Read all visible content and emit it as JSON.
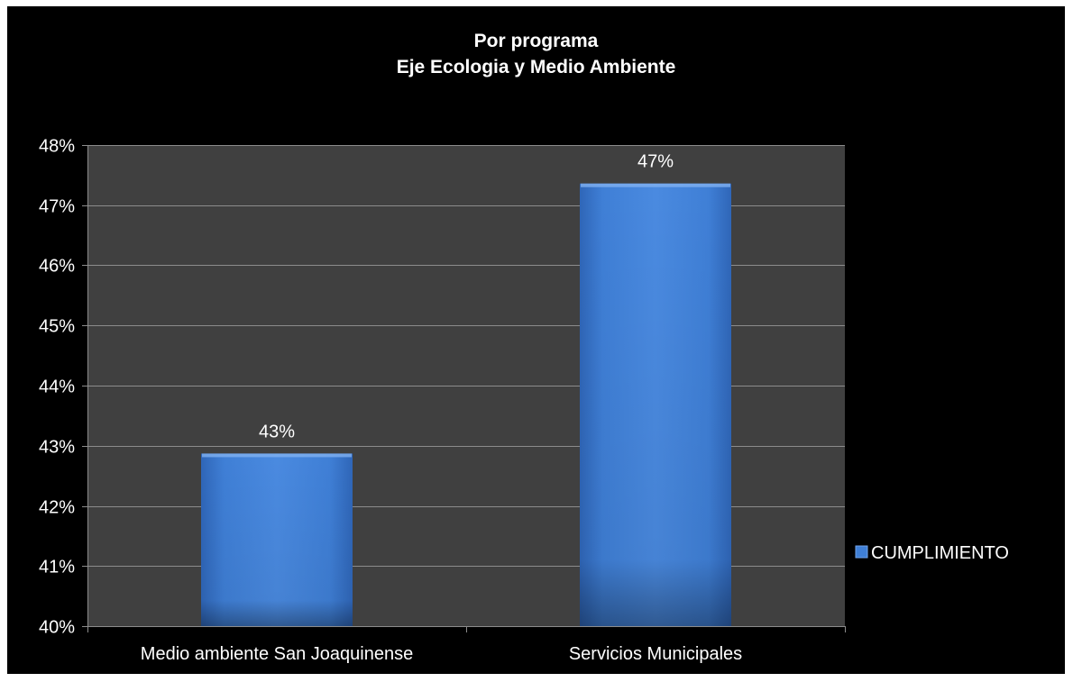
{
  "chart_data": {
    "type": "bar",
    "title": [
      "Por programa",
      "Eje Ecologia y Medio Ambiente"
    ],
    "categories": [
      "Medio ambiente San Joaquinense",
      "Servicios Municipales"
    ],
    "series": [
      {
        "name": "CUMPLIMIENTO",
        "values": [
          0.4287,
          0.4736
        ],
        "data_labels": [
          "43%",
          "47%"
        ]
      }
    ],
    "ylim": [
      0.4,
      0.48
    ],
    "yticks": [
      0.4,
      0.41,
      0.42,
      0.43,
      0.44,
      0.45,
      0.46,
      0.47,
      0.48
    ],
    "ytick_labels": [
      "40%",
      "41%",
      "42%",
      "43%",
      "44%",
      "45%",
      "46%",
      "47%",
      "48%"
    ],
    "grid": true,
    "legend_position": "right",
    "colors": {
      "background": "#000000",
      "plot_area": "#404040",
      "gridline": "#8c8c8c",
      "bar": "#3f7fd6",
      "text": "#ffffff"
    }
  }
}
